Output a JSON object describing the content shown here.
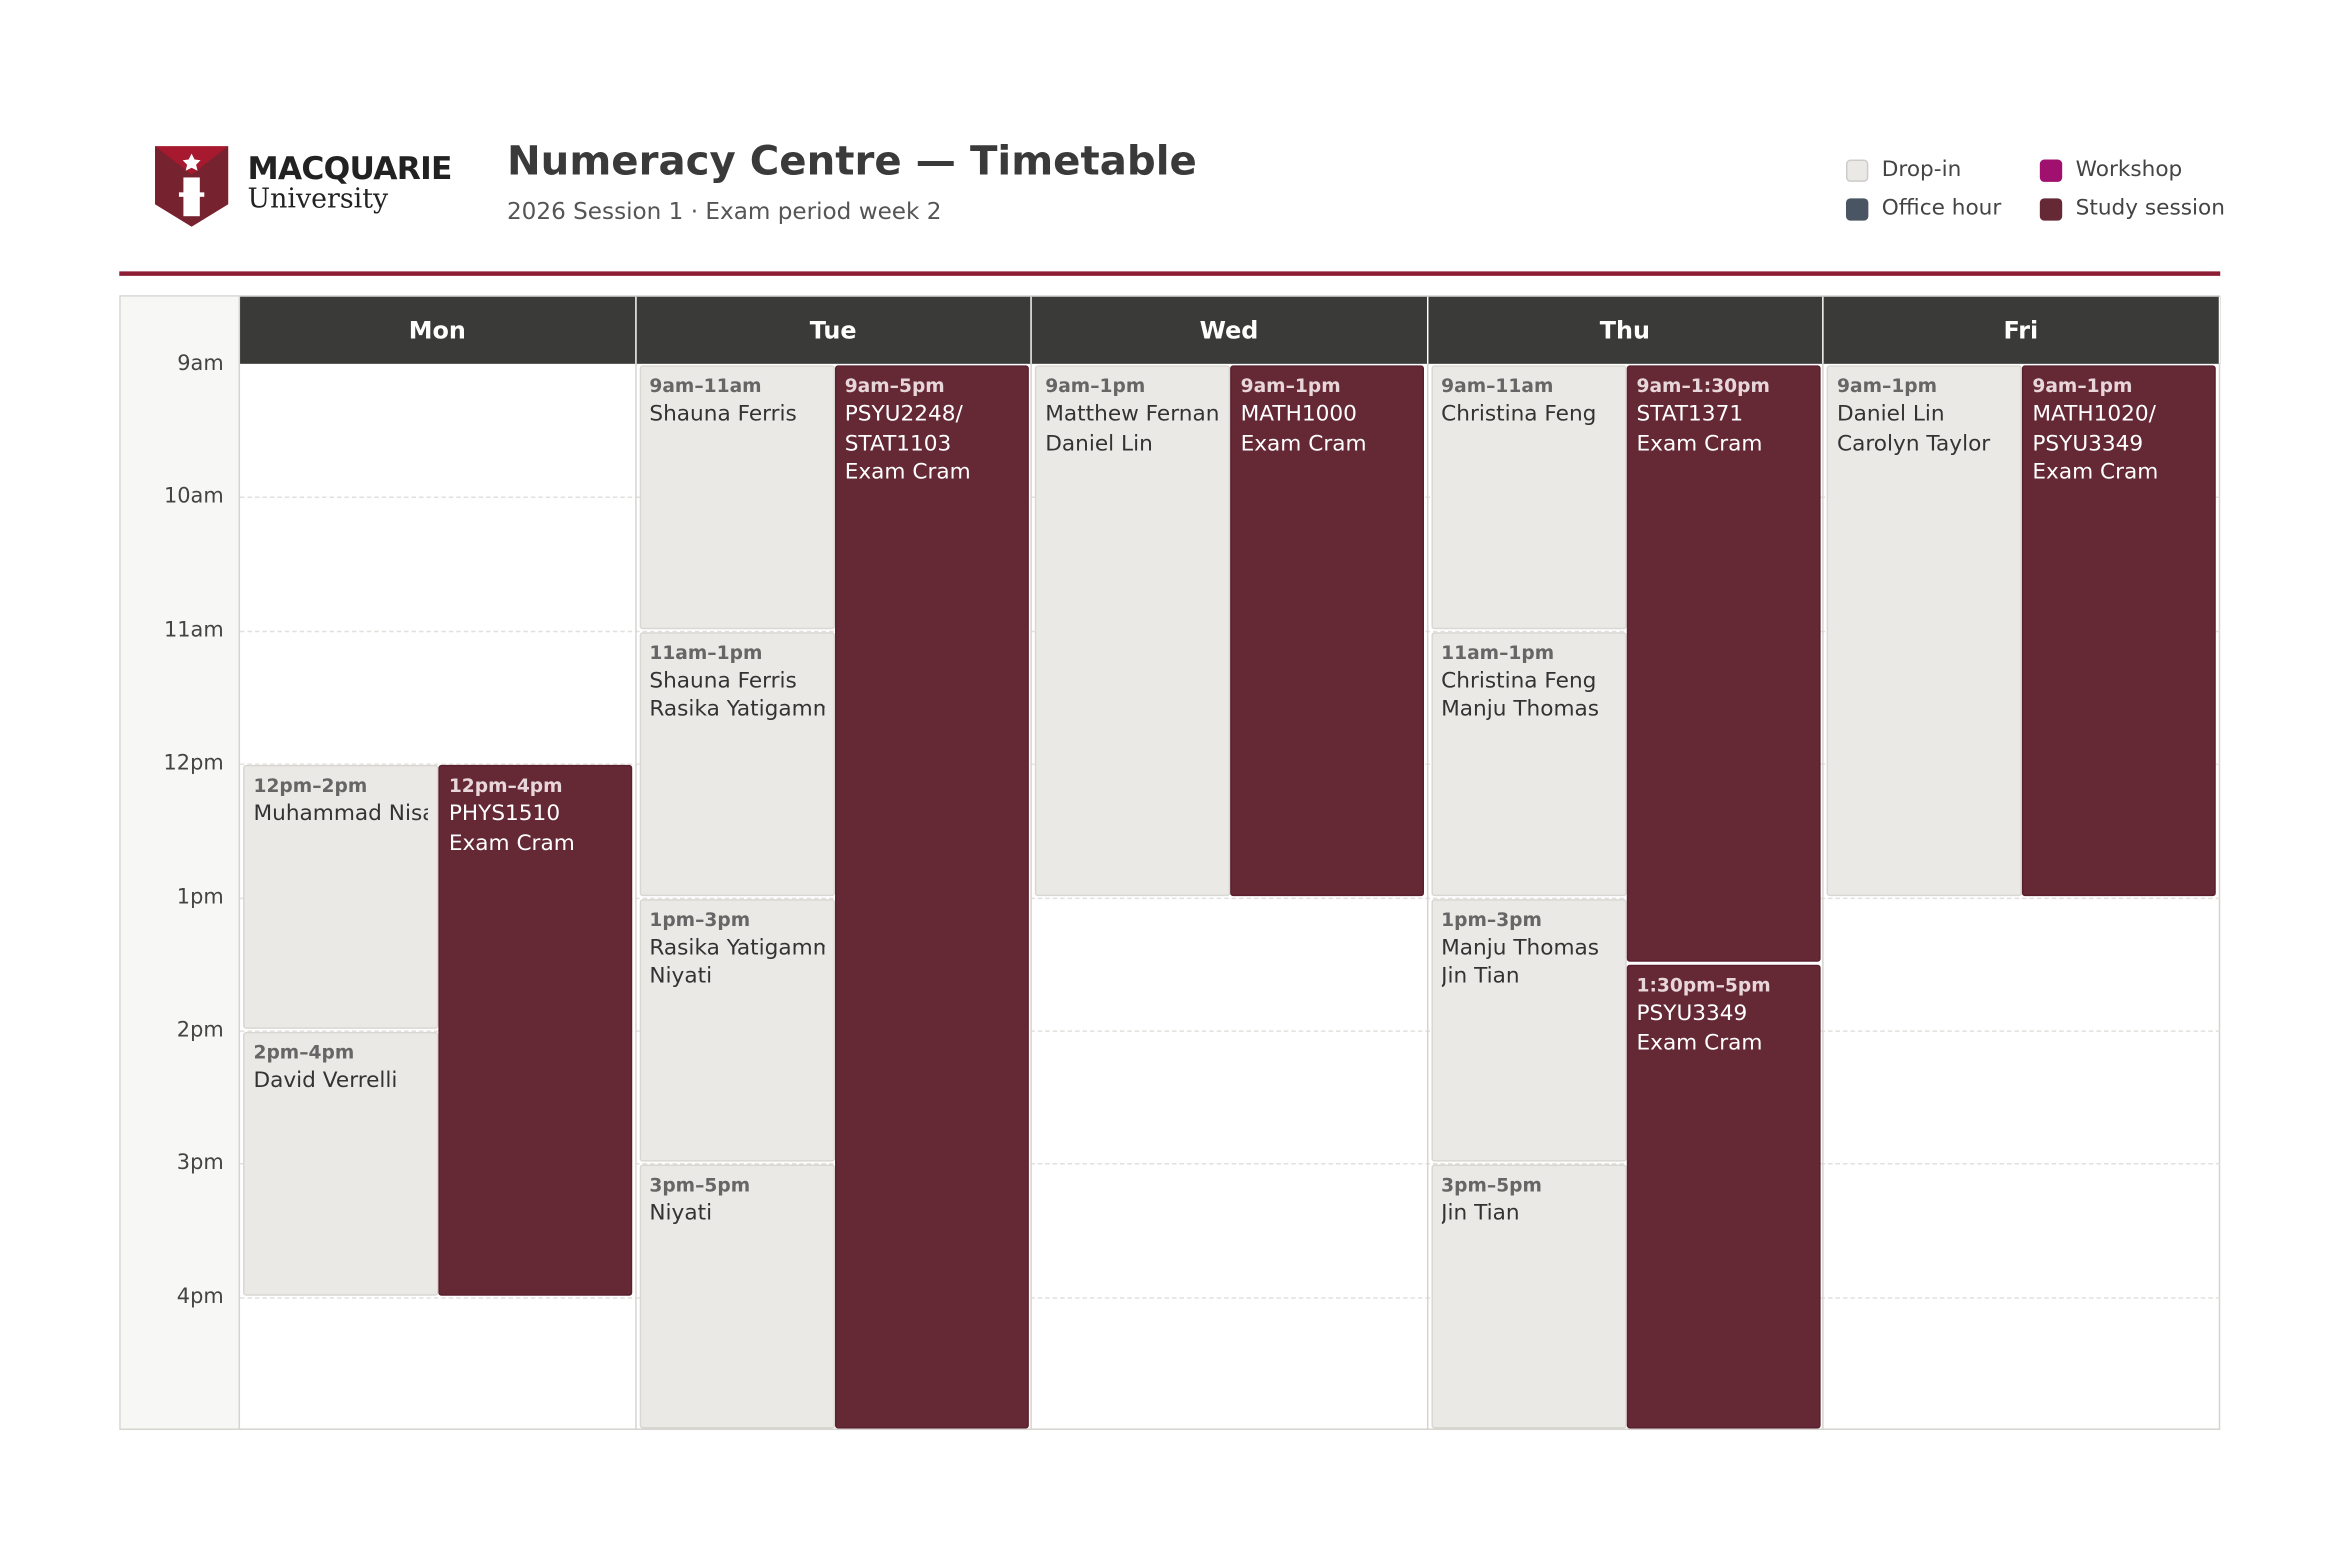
{
  "header": {
    "logo_top": "MACQUARIE",
    "logo_bottom": "University",
    "title": "Numeracy Centre — Timetable",
    "subtitle": "2026 Session 1 · Exam period week 2"
  },
  "legend": [
    {
      "label": "Drop-in",
      "color": "#ebe9e5"
    },
    {
      "label": "Office hour",
      "color": "#4a5563"
    },
    {
      "label": "Workshop",
      "color": "#a0106e"
    },
    {
      "label": "Study session",
      "color": "#652835"
    }
  ],
  "times": [
    "9am",
    "10am",
    "11am",
    "12pm",
    "1pm",
    "2pm",
    "3pm",
    "4pm"
  ],
  "days": [
    {
      "name": "Mon",
      "events": [
        {
          "kind": 0,
          "time": "12pm–2pm",
          "names": [
            "Muhammad Nisar"
          ]
        },
        {
          "kind": 0,
          "time": "2pm–4pm",
          "names": [
            "David Verrelli"
          ]
        },
        {
          "kind": 3,
          "time": "12pm–4pm",
          "names": [
            "PHYS1510 Exam Cram"
          ]
        }
      ]
    },
    {
      "name": "Tue",
      "events": [
        {
          "kind": 0,
          "time": "9am–11am",
          "names": [
            "Shauna Ferris"
          ]
        },
        {
          "kind": 0,
          "time": "11am–1pm",
          "names": [
            "Shauna Ferris",
            "Rasika Yatigammana"
          ]
        },
        {
          "kind": 0,
          "time": "1pm–3pm",
          "names": [
            "Rasika Yatigammana",
            "Niyati"
          ]
        },
        {
          "kind": 0,
          "time": "3pm–5pm",
          "names": [
            "Niyati"
          ]
        },
        {
          "kind": 3,
          "time": "9am–5pm",
          "names": [
            "PSYU2248/ STAT1103 Exam Cram"
          ]
        }
      ]
    },
    {
      "name": "Wed",
      "events": [
        {
          "kind": 0,
          "time": "9am–1pm",
          "names": [
            "Matthew Fernando",
            "Daniel Lin"
          ]
        },
        {
          "kind": 3,
          "time": "9am–1pm",
          "names": [
            "MATH1000 Exam Cram"
          ]
        }
      ]
    },
    {
      "name": "Thu",
      "events": [
        {
          "kind": 0,
          "time": "9am–11am",
          "names": [
            "Christina Feng"
          ]
        },
        {
          "kind": 0,
          "time": "11am–1pm",
          "names": [
            "Christina Feng",
            "Manju Thomas"
          ]
        },
        {
          "kind": 0,
          "time": "1pm–3pm",
          "names": [
            "Manju Thomas",
            "Jin Tian"
          ]
        },
        {
          "kind": 0,
          "time": "3pm–5pm",
          "names": [
            "Jin Tian"
          ]
        },
        {
          "kind": 3,
          "time": "9am–1:30pm",
          "names": [
            "STAT1371 Exam Cram"
          ]
        },
        {
          "kind": 3,
          "time": "1:30pm–5pm",
          "names": [
            "PSYU3349 Exam Cram"
          ]
        }
      ]
    },
    {
      "name": "Fri",
      "events": [
        {
          "kind": 0,
          "time": "9am–1pm",
          "names": [
            "Daniel Lin",
            "Carolyn Taylor"
          ]
        },
        {
          "kind": 3,
          "time": "9am–1pm",
          "names": [
            "MATH1020/ PSYU3349 Exam Cram"
          ]
        }
      ]
    }
  ]
}
